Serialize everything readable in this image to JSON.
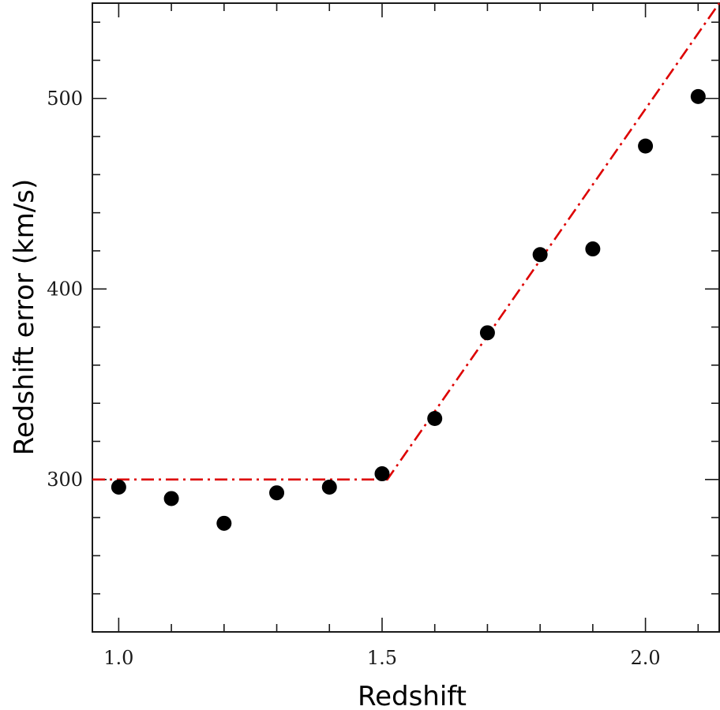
{
  "chart_data": {
    "type": "scatter",
    "title": "",
    "xlabel": "Redshift",
    "ylabel": "Redshift error (km/s)",
    "xlim": [
      0.95,
      2.14
    ],
    "ylim": [
      220,
      550
    ],
    "x_ticks_major": [
      1.0,
      1.5,
      2.0
    ],
    "x_tick_labels": [
      "1.0",
      "1.5",
      "2.0"
    ],
    "y_ticks_major": [
      300,
      400,
      500
    ],
    "y_tick_labels": [
      "300",
      "400",
      "500"
    ],
    "grid": false,
    "legend": "none",
    "series": [
      {
        "kind": "points",
        "color": "#000000",
        "x": [
          1.0,
          1.1,
          1.2,
          1.3,
          1.4,
          1.5,
          1.6,
          1.7,
          1.8,
          1.9,
          2.0,
          2.1
        ],
        "y": [
          296,
          290,
          277,
          293,
          296,
          303,
          332,
          377,
          418,
          421,
          475,
          501
        ]
      },
      {
        "kind": "line",
        "style": "dash-dot",
        "color": "#dd0000",
        "x": [
          0.95,
          1.51,
          2.14
        ],
        "y": [
          300,
          300,
          550
        ]
      }
    ]
  }
}
